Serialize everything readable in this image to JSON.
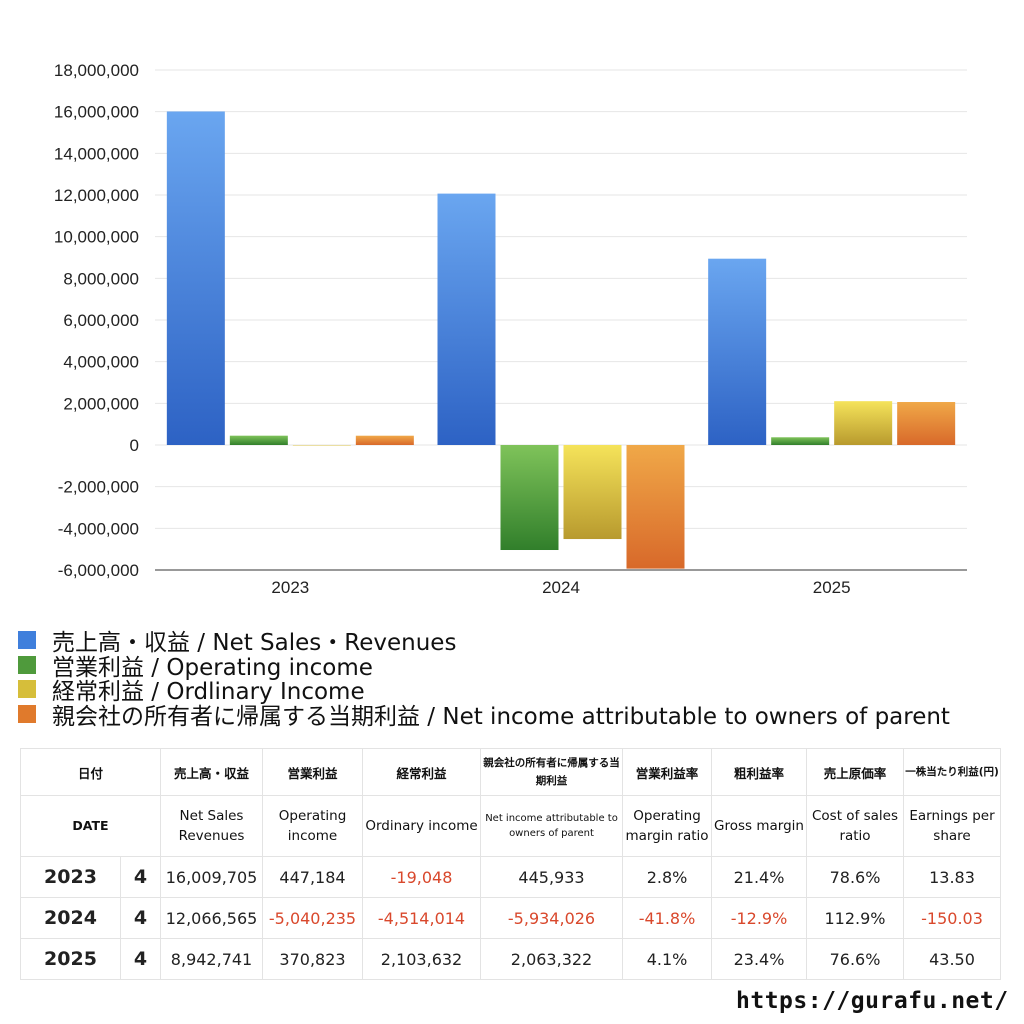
{
  "chart_data": {
    "type": "bar",
    "categories": [
      "2023",
      "2024",
      "2025"
    ],
    "ylim": [
      -6000000,
      18000000
    ],
    "yticks": [
      18000000,
      16000000,
      14000000,
      12000000,
      10000000,
      8000000,
      6000000,
      4000000,
      2000000,
      0,
      -2000000,
      -4000000,
      -6000000
    ],
    "ytick_labels": [
      "18,000,000",
      "16,000,000",
      "14,000,000",
      "12,000,000",
      "10,000,000",
      "8,000,000",
      "6,000,000",
      "4,000,000",
      "2,000,000",
      "0",
      "-2,000,000",
      "-4,000,000",
      "-6,000,000"
    ],
    "grid": true,
    "legend_position": "bottom-left",
    "series": [
      {
        "name": "売上高・収益 / Net Sales・Revenues",
        "color": "#3f7fdc",
        "values": [
          16009705,
          12066565,
          8942741
        ]
      },
      {
        "name": "営業利益 / Operating income",
        "color": "#4f9a3c",
        "values": [
          447184,
          -5040235,
          370823
        ]
      },
      {
        "name": "経常利益 / Ordlinary Income",
        "color": "#d6be3a",
        "values": [
          -19048,
          -4514014,
          2103632
        ]
      },
      {
        "name": "親会社の所有者に帰属する当期利益 / Net income attributable to owners of parent",
        "color": "#e07a2c",
        "values": [
          445933,
          -5934026,
          2063322
        ]
      }
    ]
  },
  "table": {
    "header_jp": [
      "日付",
      "売上高・収益",
      "営業利益",
      "経常利益",
      "親会社の所有者に帰属する当期利益",
      "営業利益率",
      "粗利益率",
      "売上原価率",
      "一株当たり利益(円)"
    ],
    "header_en": [
      "DATE",
      "Net Sales Revenues",
      "Operating income",
      "Ordinary income",
      "Net income attributable to owners of parent",
      "Operating margin ratio",
      "Gross margin",
      "Cost of sales ratio",
      "Earnings per share"
    ],
    "rows": [
      {
        "year": "2023",
        "months": "4",
        "sales": "16,009,705",
        "operating": "447,184",
        "ordinary": "-19,048",
        "net": "445,933",
        "op_margin": "2.8%",
        "gross": "21.4%",
        "cost": "78.6%",
        "eps": "13.83"
      },
      {
        "year": "2024",
        "months": "4",
        "sales": "12,066,565",
        "operating": "-5,040,235",
        "ordinary": "-4,514,014",
        "net": "-5,934,026",
        "op_margin": "-41.8%",
        "gross": "-12.9%",
        "cost": "112.9%",
        "eps": "-150.03"
      },
      {
        "year": "2025",
        "months": "4",
        "sales": "8,942,741",
        "operating": "370,823",
        "ordinary": "2,103,632",
        "net": "2,063,322",
        "op_margin": "4.1%",
        "gross": "23.4%",
        "cost": "76.6%",
        "eps": "43.50"
      }
    ]
  },
  "footer": {
    "url": "https://gurafu.net/"
  }
}
